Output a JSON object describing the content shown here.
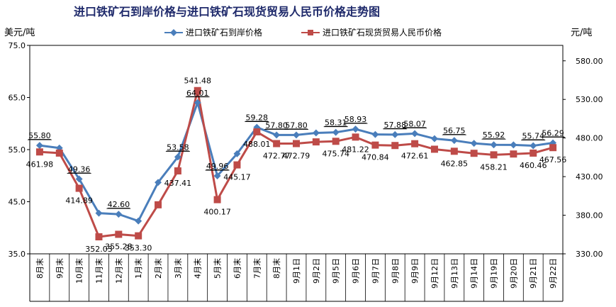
{
  "chart_data": {
    "type": "line",
    "title": "进口铁矿石到岸价格与进口铁矿石现货贸易人民币价格走势图",
    "left_unit": "美元/吨",
    "right_unit": "元/吨",
    "left_ylim": [
      35.0,
      75.0
    ],
    "left_ticks": [
      "75.0",
      "65.0",
      "55.0",
      "45.0",
      "35.0"
    ],
    "right_ylim": [
      330,
      600
    ],
    "right_ticks": [
      "580.00",
      "530.00",
      "480.00",
      "430.00",
      "380.00",
      "330.00"
    ],
    "legend_position": "top-center",
    "categories": [
      "8月末",
      "9月末",
      "10月末",
      "11月末",
      "12月末",
      "1月末",
      "2月末",
      "3月末",
      "4月末",
      "5月末",
      "6月末",
      "7月末",
      "8月末",
      "9月1日",
      "9月2日",
      "9月5日",
      "9月6日",
      "9月7日",
      "9月8日",
      "9月9日",
      "9月12日",
      "9月13日",
      "9月14日",
      "9月19日",
      "9月20日",
      "9月21日",
      "9月22日"
    ],
    "series": [
      {
        "name": "进口铁矿石到岸价格",
        "axis": "left",
        "color": "#4a7ebb",
        "marker": "diamond",
        "values": [
          55.8,
          55.3,
          49.36,
          42.8,
          42.6,
          41.3,
          48.7,
          53.58,
          64.01,
          49.96,
          54.2,
          59.28,
          57.8,
          57.8,
          58.2,
          58.31,
          58.93,
          57.9,
          57.88,
          58.07,
          57.1,
          56.75,
          56.2,
          55.92,
          55.9,
          55.74,
          56.29
        ],
        "labels": [
          "55.80",
          "",
          "49.36",
          "",
          "42.60",
          "",
          "",
          "53.58",
          "64.01",
          "49.96",
          "",
          "59.28",
          "57.80",
          "57.80",
          "",
          "58.31",
          "58.93",
          "",
          "57.88",
          "58.07",
          "",
          "56.75",
          "",
          "55.92",
          "",
          "55.74",
          "56.29"
        ]
      },
      {
        "name": "进口铁矿石现货贸易人民币价格",
        "axis": "right",
        "color": "#be4b48",
        "marker": "square",
        "values": [
          461.98,
          460.5,
          414.89,
          352.03,
          355.28,
          353.3,
          393.5,
          437.41,
          541.48,
          400.17,
          445.17,
          488.01,
          472.77,
          472.79,
          475.0,
          475.74,
          481.22,
          470.84,
          470.3,
          472.61,
          465.5,
          462.85,
          460.2,
          458.21,
          459.3,
          460.46,
          467.56
        ],
        "labels": [
          "461.98",
          "",
          "414.89",
          "352.03",
          "355.28",
          "353.30",
          "",
          "437.41",
          "541.48",
          "400.17",
          "445.17",
          "488.01",
          "472.77",
          "472.79",
          "",
          "475.74",
          "481.22",
          "470.84",
          "",
          "472.61",
          "",
          "462.85",
          "",
          "458.21",
          "",
          "460.46",
          "467.56"
        ]
      }
    ]
  }
}
